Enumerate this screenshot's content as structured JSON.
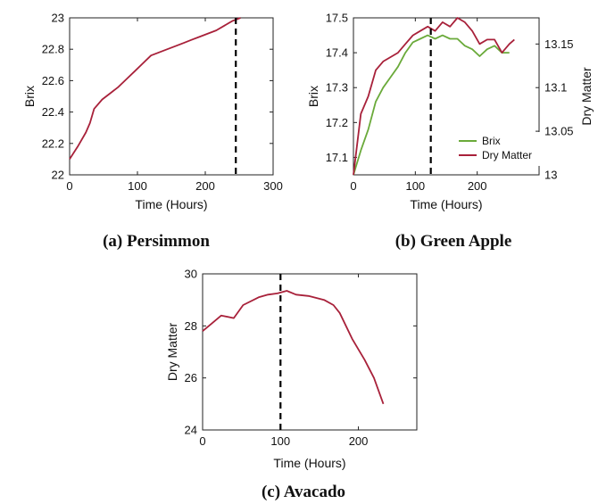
{
  "colors": {
    "red": "#a8213a",
    "green": "#6aaa3a",
    "dashed": "#000000"
  },
  "chart_data": [
    {
      "id": "persimmon",
      "type": "line",
      "caption": "(a) Persimmon",
      "xlabel": "Time (Hours)",
      "ylabel": "Brix",
      "xlim": [
        0,
        300
      ],
      "ylim": [
        22,
        23
      ],
      "xticks": [
        "0",
        "100",
        "200",
        "300"
      ],
      "yticks": [
        "22",
        "22.2",
        "22.4",
        "22.6",
        "22.8",
        "23"
      ],
      "vline_x": 245,
      "series": [
        {
          "color": "#a8213a",
          "x": [
            0,
            12,
            24,
            30,
            36,
            48,
            60,
            72,
            84,
            96,
            108,
            120,
            132,
            144,
            156,
            168,
            180,
            192,
            204,
            216,
            228,
            240,
            252
          ],
          "y": [
            22.1,
            22.18,
            22.27,
            22.33,
            22.42,
            22.48,
            22.52,
            22.56,
            22.61,
            22.66,
            22.71,
            22.76,
            22.78,
            22.8,
            22.82,
            22.84,
            22.86,
            22.88,
            22.9,
            22.92,
            22.95,
            22.98,
            23.0
          ]
        }
      ]
    },
    {
      "id": "green-apple",
      "type": "line",
      "caption": "(b) Green Apple",
      "xlabel": "Time (Hours)",
      "ylabel": "Brix",
      "y2label": "Dry Matter",
      "xlim": [
        0,
        300
      ],
      "ylim": [
        17.05,
        17.5
      ],
      "y2lim": [
        13.0,
        13.18
      ],
      "xticks": [
        "0",
        "100",
        "200"
      ],
      "yticks": [
        "17.1",
        "17.2",
        "17.3",
        "17.4",
        "17.5"
      ],
      "y2ticks": [
        "13",
        "13.05",
        "13.1",
        "13.15"
      ],
      "vline_x": 125,
      "legend": [
        "Brix",
        "Dry Matter"
      ],
      "series": [
        {
          "name": "Brix",
          "color": "#6aaa3a",
          "axis": "left",
          "x": [
            0,
            12,
            24,
            36,
            48,
            60,
            72,
            84,
            96,
            108,
            120,
            132,
            144,
            156,
            168,
            180,
            192,
            204,
            216,
            228,
            240,
            252
          ],
          "y": [
            17.05,
            17.12,
            17.18,
            17.26,
            17.3,
            17.33,
            17.36,
            17.4,
            17.43,
            17.44,
            17.45,
            17.44,
            17.45,
            17.44,
            17.44,
            17.42,
            17.41,
            17.39,
            17.41,
            17.42,
            17.4,
            17.4
          ]
        },
        {
          "name": "Dry Matter",
          "color": "#a8213a",
          "axis": "right",
          "x": [
            0,
            12,
            24,
            36,
            48,
            60,
            72,
            84,
            96,
            108,
            120,
            132,
            144,
            156,
            168,
            180,
            192,
            204,
            216,
            228,
            240,
            252,
            260
          ],
          "y": [
            13.0,
            13.07,
            13.09,
            13.12,
            13.13,
            13.135,
            13.14,
            13.15,
            13.16,
            13.165,
            13.17,
            13.165,
            13.175,
            13.17,
            13.18,
            13.175,
            13.165,
            13.15,
            13.155,
            13.155,
            13.14,
            13.15,
            13.155
          ]
        }
      ]
    },
    {
      "id": "avacado",
      "type": "line",
      "caption": "(c) Avacado",
      "xlabel": "Time (Hours)",
      "ylabel": "Dry Matter",
      "xlim": [
        0,
        275
      ],
      "ylim": [
        24,
        30
      ],
      "xticks": [
        "0",
        "100",
        "200"
      ],
      "yticks": [
        "24",
        "26",
        "28",
        "30"
      ],
      "vline_x": 100,
      "series": [
        {
          "color": "#a8213a",
          "x": [
            0,
            12,
            24,
            40,
            52,
            72,
            84,
            96,
            108,
            120,
            136,
            156,
            168,
            176,
            184,
            192,
            200,
            208,
            220,
            232
          ],
          "y": [
            27.8,
            28.1,
            28.4,
            28.3,
            28.8,
            29.1,
            29.2,
            29.25,
            29.35,
            29.2,
            29.15,
            29.0,
            28.8,
            28.5,
            28.0,
            27.5,
            27.1,
            26.7,
            26.0,
            25.0
          ]
        }
      ]
    }
  ]
}
